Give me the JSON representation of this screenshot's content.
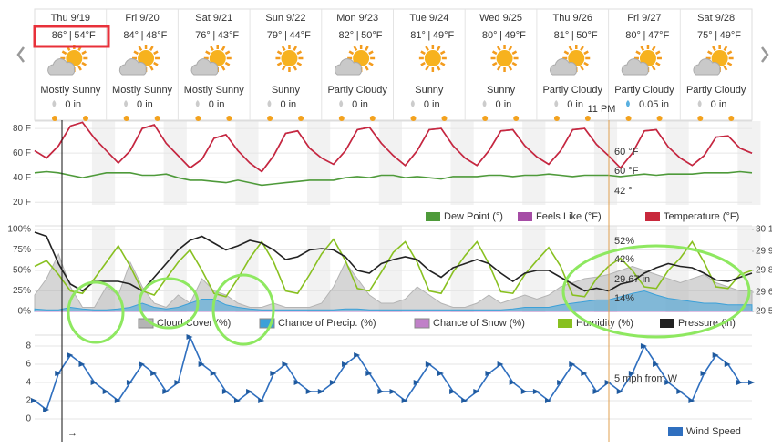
{
  "days": [
    {
      "date": "Thu 9/19",
      "high": "86°",
      "low": "54°F",
      "condition": "Mostly Sunny",
      "precip": "0 in"
    },
    {
      "date": "Fri 9/20",
      "high": "84°",
      "low": "48°F",
      "condition": "Mostly Sunny",
      "precip": "0 in"
    },
    {
      "date": "Sat 9/21",
      "high": "76°",
      "low": "43°F",
      "condition": "Mostly Sunny",
      "precip": "0 in"
    },
    {
      "date": "Sun 9/22",
      "high": "79°",
      "low": "44°F",
      "condition": "Sunny",
      "precip": "0 in"
    },
    {
      "date": "Mon 9/23",
      "high": "82°",
      "low": "50°F",
      "condition": "Partly Cloudy",
      "precip": "0 in"
    },
    {
      "date": "Tue 9/24",
      "high": "81°",
      "low": "49°F",
      "condition": "Sunny",
      "precip": "0 in"
    },
    {
      "date": "Wed 9/25",
      "high": "80°",
      "low": "49°F",
      "condition": "Sunny",
      "precip": "0 in"
    },
    {
      "date": "Thu 9/26",
      "high": "81°",
      "low": "50°F",
      "condition": "Partly Cloudy",
      "precip": "0 in"
    },
    {
      "date": "Fri 9/27",
      "high": "80°",
      "low": "47°F",
      "condition": "Partly Cloudy",
      "precip": "0.05 in"
    },
    {
      "date": "Sat 9/28",
      "high": "75°",
      "low": "49°F",
      "condition": "Partly Cloudy",
      "precip": "0 in"
    }
  ],
  "cursor_time": "11 PM",
  "now_marker": "→",
  "chart_data": [
    {
      "type": "line",
      "ylim": [
        18,
        86
      ],
      "yticks": [
        {
          "value": 20,
          "label": "20 F"
        },
        {
          "value": 40,
          "label": "40 F"
        },
        {
          "value": 60,
          "label": "60 F"
        },
        {
          "value": 80,
          "label": "80 F"
        }
      ],
      "series": [
        {
          "name": "Dew Point (°)",
          "color": "#4e9a3a",
          "values": [
            44,
            45,
            44,
            42,
            40,
            42,
            44,
            44,
            44,
            42,
            42,
            43,
            40,
            38,
            38,
            37,
            36,
            38,
            36,
            34,
            35,
            36,
            37,
            38,
            38,
            38,
            40,
            41,
            40,
            42,
            42,
            40,
            41,
            40,
            39,
            41,
            41,
            41,
            42,
            42,
            41,
            42,
            42,
            43,
            42,
            41,
            42,
            42,
            42,
            41,
            42,
            43,
            42,
            43,
            43,
            43,
            44,
            44,
            44,
            45,
            44
          ]
        },
        {
          "name": "Feels Like (°F)",
          "color": "#a54ca5",
          "values": [
            62,
            56,
            66,
            82,
            85,
            72,
            62,
            52,
            62,
            80,
            83,
            68,
            58,
            48,
            55,
            72,
            75,
            62,
            52,
            45,
            58,
            76,
            78,
            64,
            56,
            51,
            62,
            79,
            81,
            68,
            58,
            50,
            62,
            79,
            80,
            66,
            56,
            50,
            62,
            78,
            79,
            66,
            57,
            51,
            62,
            79,
            80,
            67,
            58,
            48,
            60,
            78,
            79,
            65,
            56,
            50,
            58,
            73,
            74,
            64,
            60
          ]
        },
        {
          "name": "Temperature (°F)",
          "color": "#c8283c",
          "values": [
            62,
            56,
            66,
            82,
            85,
            72,
            62,
            52,
            62,
            80,
            83,
            68,
            58,
            48,
            55,
            72,
            75,
            62,
            52,
            45,
            58,
            76,
            78,
            64,
            56,
            51,
            62,
            79,
            81,
            68,
            58,
            50,
            62,
            79,
            80,
            66,
            56,
            50,
            62,
            78,
            79,
            66,
            57,
            51,
            62,
            79,
            80,
            67,
            58,
            48,
            60,
            78,
            79,
            65,
            56,
            50,
            58,
            73,
            74,
            64,
            60
          ]
        }
      ],
      "annotations": [
        {
          "text": "60 °F",
          "color": "#a54ca5"
        },
        {
          "text": "60 °F",
          "color": "#c8283c"
        },
        {
          "text": "42 °",
          "color": "#4e9a3a"
        }
      ]
    },
    {
      "type": "line",
      "ylim": [
        0,
        100
      ],
      "yticks": [
        {
          "value": 0,
          "label": "0%"
        },
        {
          "value": 25,
          "label": "25%"
        },
        {
          "value": 50,
          "label": "50%"
        },
        {
          "value": 75,
          "label": "75%"
        },
        {
          "value": 100,
          "label": "100%"
        }
      ],
      "y2lim": [
        29.5,
        30.1
      ],
      "y2ticks": [
        29.5,
        {
          "value": 29.64,
          "label": "29.6"
        },
        29.8,
        {
          "value": 29.94,
          "label": "29.9"
        },
        30.1
      ],
      "series": [
        {
          "name": "Cloud Cover (%)",
          "color": "#b4b4b4",
          "area": true,
          "values": [
            20,
            40,
            70,
            30,
            5,
            5,
            30,
            20,
            60,
            30,
            10,
            5,
            20,
            10,
            40,
            25,
            20,
            10,
            5,
            5,
            10,
            5,
            5,
            5,
            10,
            30,
            60,
            40,
            20,
            10,
            10,
            15,
            30,
            20,
            10,
            5,
            5,
            10,
            20,
            10,
            15,
            20,
            15,
            20,
            30,
            35,
            40,
            42,
            45,
            50,
            55,
            50,
            45,
            40,
            35,
            40,
            45,
            35,
            30,
            25,
            25
          ]
        },
        {
          "name": "Chance of Precip. (%)",
          "color": "#3ca0d8",
          "area": true,
          "values": [
            3,
            2,
            2,
            5,
            3,
            2,
            2,
            3,
            5,
            10,
            5,
            3,
            5,
            10,
            15,
            15,
            8,
            5,
            3,
            2,
            2,
            2,
            2,
            2,
            2,
            2,
            3,
            3,
            2,
            2,
            2,
            2,
            2,
            2,
            2,
            2,
            2,
            2,
            2,
            2,
            3,
            5,
            5,
            5,
            8,
            10,
            12,
            14,
            14,
            18,
            22,
            25,
            20,
            16,
            14,
            12,
            10,
            10,
            8,
            8,
            8
          ]
        },
        {
          "name": "Chance of Snow (%)",
          "color": "#c080c8",
          "area": true,
          "values": [
            0,
            0,
            0,
            0,
            0,
            0,
            0,
            0,
            0,
            0,
            0,
            0,
            0,
            0,
            0,
            0,
            0,
            0,
            0,
            0,
            0,
            0,
            0,
            0,
            0,
            0,
            0,
            0,
            0,
            0,
            0,
            0,
            0,
            0,
            0,
            0,
            0,
            0,
            0,
            0,
            0,
            0,
            0,
            0,
            0,
            0,
            0,
            0,
            0,
            0,
            0,
            0,
            0,
            0,
            0,
            0,
            0,
            0,
            0,
            0,
            0
          ]
        },
        {
          "name": "Humidity (%)",
          "color": "#88c020",
          "values": [
            55,
            62,
            45,
            25,
            22,
            40,
            60,
            80,
            55,
            25,
            20,
            40,
            60,
            75,
            50,
            22,
            18,
            40,
            65,
            85,
            60,
            25,
            22,
            45,
            70,
            88,
            62,
            28,
            25,
            48,
            72,
            85,
            60,
            25,
            22,
            48,
            68,
            85,
            58,
            24,
            22,
            45,
            62,
            78,
            55,
            20,
            18,
            40,
            55,
            65,
            50,
            30,
            28,
            50,
            65,
            85,
            60,
            30,
            28,
            45,
            50
          ]
        },
        {
          "name": "Pressure (in)",
          "color": "#222222",
          "axis": "y2",
          "values": [
            30.08,
            30.05,
            29.85,
            29.7,
            29.65,
            29.72,
            29.72,
            29.72,
            29.7,
            29.65,
            29.75,
            29.85,
            29.95,
            30.02,
            30.05,
            30.0,
            29.95,
            29.98,
            30.02,
            30.0,
            29.95,
            29.88,
            29.9,
            29.95,
            29.96,
            29.95,
            29.9,
            29.8,
            29.78,
            29.85,
            29.88,
            29.9,
            29.88,
            29.8,
            29.75,
            29.82,
            29.85,
            29.88,
            29.85,
            29.78,
            29.72,
            29.78,
            29.8,
            29.8,
            29.75,
            29.7,
            29.65,
            29.67,
            29.65,
            29.7,
            29.72,
            29.78,
            29.82,
            29.85,
            29.83,
            29.82,
            29.78,
            29.73,
            29.72,
            29.75,
            29.78
          ]
        }
      ],
      "annotations": [
        {
          "text": "52%",
          "color": "#88c020"
        },
        {
          "text": "42%",
          "color": "#888888"
        },
        {
          "text": "29.67 in",
          "color": "#222222"
        },
        {
          "text": "14%",
          "color": "#3ca0d8"
        }
      ]
    },
    {
      "type": "line",
      "ylim": [
        0,
        8.5
      ],
      "yticks": [
        0,
        2,
        4,
        6,
        8
      ],
      "series": [
        {
          "name": "Wind Speed",
          "color": "#2f6fbf",
          "values": [
            2,
            1,
            5,
            7,
            6,
            4,
            3,
            2,
            4,
            6,
            5,
            3,
            4,
            9,
            6,
            5,
            3,
            2,
            3,
            2,
            5,
            6,
            4,
            3,
            3,
            4,
            6,
            7,
            5,
            3,
            3,
            2,
            4,
            6,
            5,
            3,
            2,
            3,
            5,
            6,
            4,
            3,
            3,
            2,
            4,
            6,
            5,
            3,
            4,
            3,
            5,
            8,
            6,
            4,
            3,
            2,
            5,
            7,
            6,
            4,
            4
          ]
        }
      ],
      "annotations": [
        {
          "text": "5 mph from W",
          "color": "#2f6fbf"
        }
      ]
    }
  ]
}
